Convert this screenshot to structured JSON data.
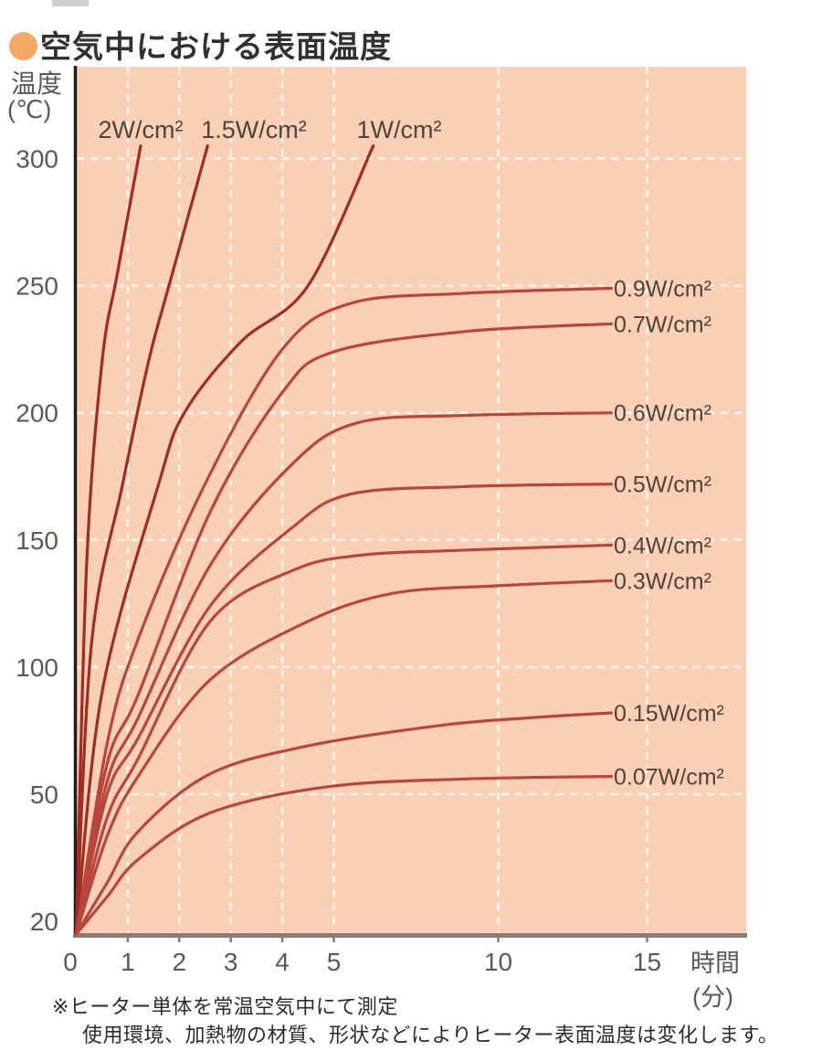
{
  "title": {
    "text": "空気中における表面温度"
  },
  "axis": {
    "y_name": "温度",
    "y_unit": "(℃)",
    "x_name": "時間",
    "x_unit": "(分)"
  },
  "notes": {
    "line1": "※ヒーター単体を常温空気中にて測定",
    "line2": "使用環境、加熱物の材質、形状などによりヒーター表面温度は変化します。"
  },
  "colors": {
    "plot_bg": "#f9cfb6",
    "grid": "#fdf5ec",
    "axis_left": "#1f1c1a",
    "axis_bottom": "#8d7a74",
    "tick_text": "#5d5755",
    "curve_label_text": "#4f4439",
    "title_text": "#333030",
    "bullet": "#f5a967",
    "curve_steep": "#a02d25",
    "curve_plateau": "#b8463d"
  },
  "chart_data": {
    "type": "line",
    "title": "空気中における表面温度",
    "xlabel": "時間(分)",
    "ylabel": "温度(℃)",
    "xlim": [
      0,
      15.5
    ],
    "ylim": [
      20,
      310
    ],
    "x_ticks": [
      0,
      1,
      2,
      3,
      4,
      5,
      10,
      15
    ],
    "y_ticks": [
      300,
      250,
      200,
      150,
      100,
      50,
      20
    ],
    "x_grid_at": [
      1,
      2,
      3,
      4,
      5,
      10,
      15
    ],
    "y_grid_at": [
      300,
      250,
      200,
      150,
      100,
      50
    ],
    "grid_style": "white dashed",
    "ambient_start_c": 20,
    "series": [
      {
        "name": "2W/cm²",
        "label_position": "top",
        "color": "#a02d25",
        "points_min_c": [
          [
            0,
            20
          ],
          [
            0.2,
            140
          ],
          [
            0.5,
            220
          ],
          [
            0.8,
            255
          ],
          [
            1.25,
            305
          ]
        ]
      },
      {
        "name": "1.5W/cm²",
        "label_position": "top",
        "color": "#a02d25",
        "points_min_c": [
          [
            0,
            20
          ],
          [
            0.3,
            110
          ],
          [
            0.9,
            172
          ],
          [
            1.4,
            220
          ],
          [
            1.8,
            250
          ],
          [
            2.55,
            305
          ]
        ]
      },
      {
        "name": "1W/cm²",
        "label_position": "top",
        "color": "#a02d25",
        "points_min_c": [
          [
            0,
            20
          ],
          [
            0.5,
            90
          ],
          [
            1.6,
            172
          ],
          [
            2.1,
            200
          ],
          [
            3.2,
            228
          ],
          [
            4.5,
            250
          ],
          [
            6.2,
            305
          ]
        ]
      },
      {
        "name": "0.9W/cm²",
        "label_position": "right",
        "color": "#b8463d",
        "points_min_c": [
          [
            0,
            20
          ],
          [
            0.6,
            70
          ],
          [
            1.2,
            111
          ],
          [
            2.5,
            172
          ],
          [
            4,
            225
          ],
          [
            5.5,
            243
          ],
          [
            9,
            247
          ],
          [
            13.8,
            249
          ]
        ]
      },
      {
        "name": "0.7W/cm²",
        "label_position": "right",
        "color": "#b8463d",
        "points_min_c": [
          [
            0,
            20
          ],
          [
            0.6,
            62
          ],
          [
            1.2,
            89
          ],
          [
            2.6,
            161
          ],
          [
            4,
            208
          ],
          [
            5,
            224
          ],
          [
            9,
            232
          ],
          [
            13.8,
            235
          ]
        ]
      },
      {
        "name": "0.6W/cm²",
        "label_position": "right",
        "color": "#b8463d",
        "points_min_c": [
          [
            0,
            20
          ],
          [
            0.6,
            55
          ],
          [
            1.2,
            80
          ],
          [
            2.6,
            140
          ],
          [
            4.2,
            180
          ],
          [
            5.7,
            196
          ],
          [
            9,
            199
          ],
          [
            13.8,
            200
          ]
        ]
      },
      {
        "name": "0.5W/cm²",
        "label_position": "right",
        "color": "#b8463d",
        "points_min_c": [
          [
            0,
            20
          ],
          [
            0.6,
            50
          ],
          [
            1.2,
            72
          ],
          [
            2.6,
            124
          ],
          [
            4.2,
            155
          ],
          [
            5.5,
            168
          ],
          [
            9,
            171
          ],
          [
            13.8,
            172
          ]
        ]
      },
      {
        "name": "0.4W/cm²",
        "label_position": "right",
        "color": "#b8463d",
        "points_min_c": [
          [
            0,
            20
          ],
          [
            0.6,
            45
          ],
          [
            1.2,
            64
          ],
          [
            2.6,
            118
          ],
          [
            4.2,
            138
          ],
          [
            5.8,
            144
          ],
          [
            9,
            146
          ],
          [
            13.8,
            148
          ]
        ]
      },
      {
        "name": "0.3W/cm²",
        "label_position": "right",
        "color": "#b8463d",
        "points_min_c": [
          [
            0,
            20
          ],
          [
            0.6,
            41
          ],
          [
            1.2,
            57
          ],
          [
            2.6,
            95
          ],
          [
            4.5,
            118
          ],
          [
            6.8,
            129
          ],
          [
            10,
            132
          ],
          [
            13.8,
            134
          ]
        ]
      },
      {
        "name": "0.15W/cm²",
        "label_position": "right",
        "color": "#b8463d",
        "points_min_c": [
          [
            0,
            20
          ],
          [
            0.6,
            31
          ],
          [
            1.2,
            42
          ],
          [
            2.6,
            58
          ],
          [
            4.5,
            69
          ],
          [
            8.2,
            77
          ],
          [
            11,
            80
          ],
          [
            13.8,
            82
          ]
        ]
      },
      {
        "name": "0.07W/cm²",
        "label_position": "right",
        "color": "#b8463d",
        "points_min_c": [
          [
            0,
            20
          ],
          [
            0.6,
            28
          ],
          [
            1.2,
            36
          ],
          [
            2.6,
            46
          ],
          [
            4.9,
            53
          ],
          [
            9,
            56
          ],
          [
            13.8,
            57
          ]
        ]
      }
    ],
    "plateau_temperatures_c": {
      "0.9": 249,
      "0.7": 235,
      "0.6": 200,
      "0.5": 172,
      "0.4": 148,
      "0.3": 134,
      "0.15": 82,
      "0.07": 57
    }
  }
}
